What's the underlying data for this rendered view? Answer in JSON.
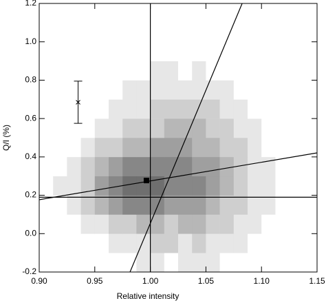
{
  "chart_data": {
    "type": "histogram2d",
    "x_label": "Relative intensity",
    "y_label": "Q/I (%)",
    "xlim": [
      0.9,
      1.15
    ],
    "ylim": [
      -0.2,
      1.2
    ],
    "xticks": [
      {
        "value": 0.9,
        "label": "0.90"
      },
      0.95,
      {
        "value": 1.0,
        "label": "1.00"
      },
      1.05,
      {
        "value": 1.1,
        "label": "1.10"
      },
      1.15
    ],
    "yticks": [
      -0.2,
      {
        "value": 0,
        "label": "0.0"
      },
      0.2,
      0.4,
      0.6,
      0.8,
      {
        "value": 1.0,
        "label": "1.0"
      },
      1.2
    ],
    "xbins": [
      0.9,
      0.9125,
      0.925,
      0.9375,
      0.95,
      0.9625,
      0.975,
      0.9875,
      1.0,
      1.0125,
      1.025,
      1.0375,
      1.05,
      1.0625,
      1.075,
      1.0875,
      1.1,
      1.1125,
      1.125,
      1.1375,
      1.15
    ],
    "ybins": [
      -0.2,
      -0.1,
      0,
      0.1,
      0.2,
      0.3,
      0.4,
      0.5,
      0.6,
      0.7,
      0.8,
      0.9,
      1.0,
      1.1,
      1.2
    ],
    "z": [
      [
        0,
        0,
        0,
        0,
        0,
        0,
        0,
        1,
        1,
        0,
        1,
        1,
        1,
        0,
        0,
        0,
        0,
        0,
        0,
        0
      ],
      [
        0,
        0,
        0,
        0,
        0,
        1,
        1,
        1,
        2,
        2,
        1,
        2,
        1,
        1,
        1,
        0,
        0,
        0,
        0,
        0
      ],
      [
        0,
        0,
        0,
        1,
        1,
        2,
        2,
        3,
        3,
        2,
        3,
        3,
        2,
        2,
        1,
        1,
        0,
        0,
        0,
        0
      ],
      [
        0,
        0,
        1,
        2,
        3,
        4,
        5,
        5,
        5,
        4,
        4,
        4,
        3,
        2,
        2,
        1,
        1,
        0,
        0,
        0
      ],
      [
        0,
        1,
        1,
        2,
        4,
        5,
        6,
        6,
        6,
        5,
        5,
        5,
        4,
        3,
        2,
        1,
        1,
        0,
        0,
        0
      ],
      [
        0,
        0,
        1,
        2,
        3,
        4,
        5,
        5,
        5,
        5,
        5,
        4,
        4,
        3,
        2,
        1,
        1,
        0,
        0,
        0
      ],
      [
        0,
        0,
        0,
        1,
        2,
        2,
        3,
        3,
        4,
        4,
        4,
        3,
        3,
        2,
        2,
        1,
        0,
        0,
        0,
        0
      ],
      [
        0,
        0,
        0,
        0,
        1,
        1,
        2,
        2,
        2,
        3,
        3,
        3,
        2,
        2,
        1,
        1,
        0,
        0,
        0,
        0
      ],
      [
        0,
        0,
        0,
        0,
        0,
        1,
        1,
        1,
        2,
        2,
        2,
        2,
        2,
        1,
        1,
        0,
        0,
        0,
        0,
        0
      ],
      [
        0,
        0,
        0,
        0,
        0,
        0,
        1,
        1,
        1,
        1,
        1,
        1,
        1,
        1,
        0,
        0,
        0,
        0,
        0,
        0
      ],
      [
        0,
        0,
        0,
        0,
        0,
        0,
        0,
        0,
        1,
        1,
        0,
        1,
        0,
        0,
        0,
        0,
        0,
        0,
        0,
        0
      ],
      [
        0,
        0,
        0,
        0,
        0,
        0,
        0,
        0,
        0,
        0,
        0,
        0,
        0,
        0,
        0,
        0,
        0,
        0,
        0,
        0
      ],
      [
        0,
        0,
        0,
        0,
        0,
        0,
        0,
        0,
        0,
        0,
        0,
        0,
        0,
        0,
        0,
        0,
        0,
        0,
        0,
        0
      ],
      [
        0,
        0,
        0,
        0,
        0,
        0,
        0,
        0,
        0,
        0,
        0,
        0,
        0,
        0,
        0,
        0,
        0,
        0,
        0,
        0
      ]
    ],
    "line_color": "#000000",
    "lines": [
      {
        "x": [
          1.0,
          1.0
        ],
        "values": [
          -0.2,
          1.2
        ]
      },
      {
        "x": [
          0.9,
          1.15
        ],
        "values": [
          0.19,
          0.19
        ]
      },
      {
        "x": [
          0.9817,
          1.0826
        ],
        "values": [
          -0.2,
          1.2
        ]
      },
      {
        "x": [
          0.9,
          1.15
        ],
        "values": [
          0.177,
          0.421
        ]
      }
    ],
    "points": [
      {
        "x": 0.9965,
        "y": 0.277
      }
    ],
    "error_bars": [
      {
        "x": 0.935,
        "y": 0.685,
        "error": 0.11
      }
    ]
  }
}
